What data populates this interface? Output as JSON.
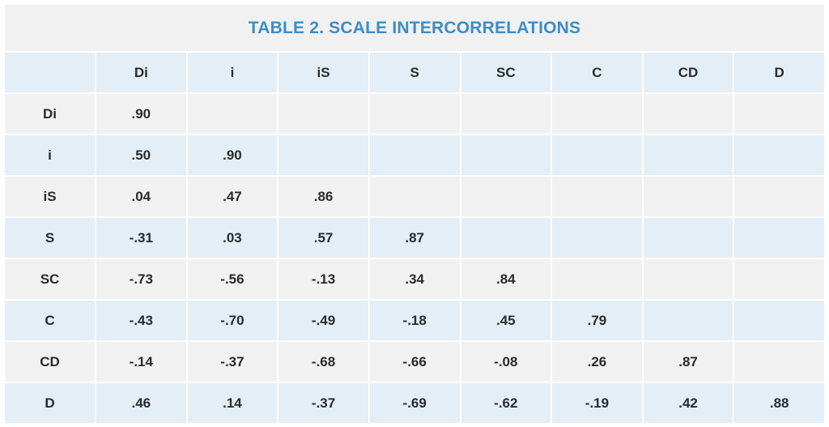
{
  "title": "TABLE 2. SCALE INTERCORRELATIONS",
  "columns": [
    "",
    "Di",
    "i",
    "iS",
    "S",
    "SC",
    "C",
    "CD",
    "D"
  ],
  "rows": [
    {
      "label": "Di",
      "values": [
        ".90",
        "",
        "",
        "",
        "",
        "",
        "",
        ""
      ]
    },
    {
      "label": "i",
      "values": [
        ".50",
        ".90",
        "",
        "",
        "",
        "",
        "",
        ""
      ]
    },
    {
      "label": "iS",
      "values": [
        ".04",
        ".47",
        ".86",
        "",
        "",
        "",
        "",
        ""
      ]
    },
    {
      "label": "S",
      "values": [
        "-.31",
        ".03",
        ".57",
        ".87",
        "",
        "",
        "",
        ""
      ]
    },
    {
      "label": "SC",
      "values": [
        "-.73",
        "-.56",
        "-.13",
        ".34",
        ".84",
        "",
        "",
        ""
      ]
    },
    {
      "label": "C",
      "values": [
        "-.43",
        "-.70",
        "-.49",
        "-.18",
        ".45",
        ".79",
        "",
        ""
      ]
    },
    {
      "label": "CD",
      "values": [
        "-.14",
        "-.37",
        "-.68",
        "-.66",
        "-.08",
        ".26",
        ".87",
        ""
      ]
    },
    {
      "label": "D",
      "values": [
        ".46",
        ".14",
        "-.37",
        "-.69",
        "-.62",
        "-.19",
        ".42",
        ".88"
      ]
    }
  ],
  "colors": {
    "title": "#3d8dc7",
    "row_blue": "#e3eef6",
    "row_gray": "#f1f1f1",
    "text": "#2b2b2b"
  }
}
